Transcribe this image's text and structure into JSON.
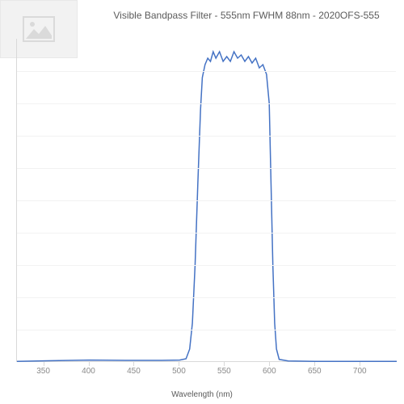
{
  "title": "Visible Bandpass Filter - 555nm FWHM 88nm - 2020OFS-555",
  "title_fontsize": 12,
  "xlabel": "Wavelength (nm)",
  "xlabel_fontsize": 10,
  "tick_fontsize": 10,
  "chart": {
    "type": "line",
    "xlim": [
      320,
      740
    ],
    "ylim": [
      0,
      100
    ],
    "xtick_start": 350,
    "xtick_step": 50,
    "xticks": [
      350,
      400,
      450,
      500,
      550,
      600,
      650,
      700
    ],
    "h_gridlines": 9,
    "grid_color": "#f2f2f2",
    "axis_color": "#d9d9d9",
    "line_color": "#4472c4",
    "line_width": 1.5,
    "tick_label_color": "#8a8a8a",
    "title_color": "#5b5b5b",
    "background_color": "#ffffff",
    "series": {
      "x": [
        320,
        360,
        400,
        440,
        480,
        500,
        507,
        511,
        514,
        517,
        520,
        523,
        525,
        528,
        531,
        534,
        537,
        540,
        544,
        548,
        552,
        556,
        560,
        564,
        568,
        572,
        576,
        580,
        584,
        588,
        592,
        596,
        599,
        601,
        603,
        605,
        607,
        610,
        620,
        650,
        700,
        740
      ],
      "y": [
        0.2,
        0.4,
        0.6,
        0.5,
        0.5,
        0.6,
        1.0,
        4.0,
        12,
        30,
        55,
        78,
        88,
        92,
        94,
        93,
        96,
        94,
        96,
        93,
        94.5,
        93,
        96,
        94,
        95,
        93,
        94.5,
        92.5,
        94,
        91,
        92,
        89,
        80,
        55,
        30,
        12,
        4,
        0.8,
        0.3,
        0.2,
        0.2,
        0.2
      ]
    }
  },
  "placeholder": {
    "bg": "#f2f2f2",
    "fg": "#c8c8c8"
  }
}
